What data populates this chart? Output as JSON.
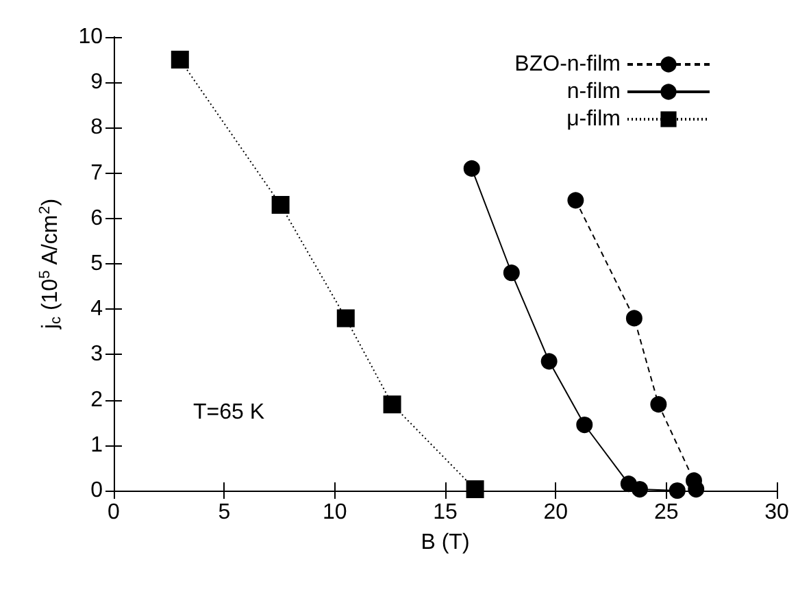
{
  "chart_data": {
    "type": "line",
    "xlabel": "B (T)",
    "ylabel": "j$_{c}$ (10$^{5}$ A/cm$^{2}$)",
    "xlim": [
      0,
      30
    ],
    "xticks": [
      0,
      5,
      10,
      15,
      20,
      25,
      30
    ],
    "ylim": [
      0,
      10
    ],
    "yticks": [
      0,
      1,
      2,
      3,
      4,
      5,
      6,
      7,
      8,
      9,
      10
    ],
    "grid": false,
    "legend": "top right",
    "annotations": [
      "T=65 K"
    ],
    "series": [
      {
        "name": "BZO-n-film",
        "color": "#000000",
        "marker": "circle",
        "line_style": "dashed",
        "x": [
          20.9,
          23.55,
          24.65,
          26.25,
          26.35
        ],
        "values": [
          6.4,
          3.8,
          1.9,
          0.22,
          0.03
        ]
      },
      {
        "name": "n-film",
        "color": "#000000",
        "marker": "circle",
        "line_style": "solid",
        "x": [
          16.2,
          18.0,
          19.7,
          21.3,
          23.3,
          23.8,
          25.5
        ],
        "values": [
          7.1,
          4.8,
          2.85,
          1.45,
          0.15,
          0.03,
          0.0
        ]
      },
      {
        "name": "μ-film",
        "color": "#000000",
        "marker": "square",
        "line_style": "dotted",
        "x": [
          3.0,
          7.55,
          10.5,
          12.6,
          16.35
        ],
        "values": [
          9.5,
          6.3,
          3.8,
          1.9,
          0.03
        ]
      }
    ]
  }
}
